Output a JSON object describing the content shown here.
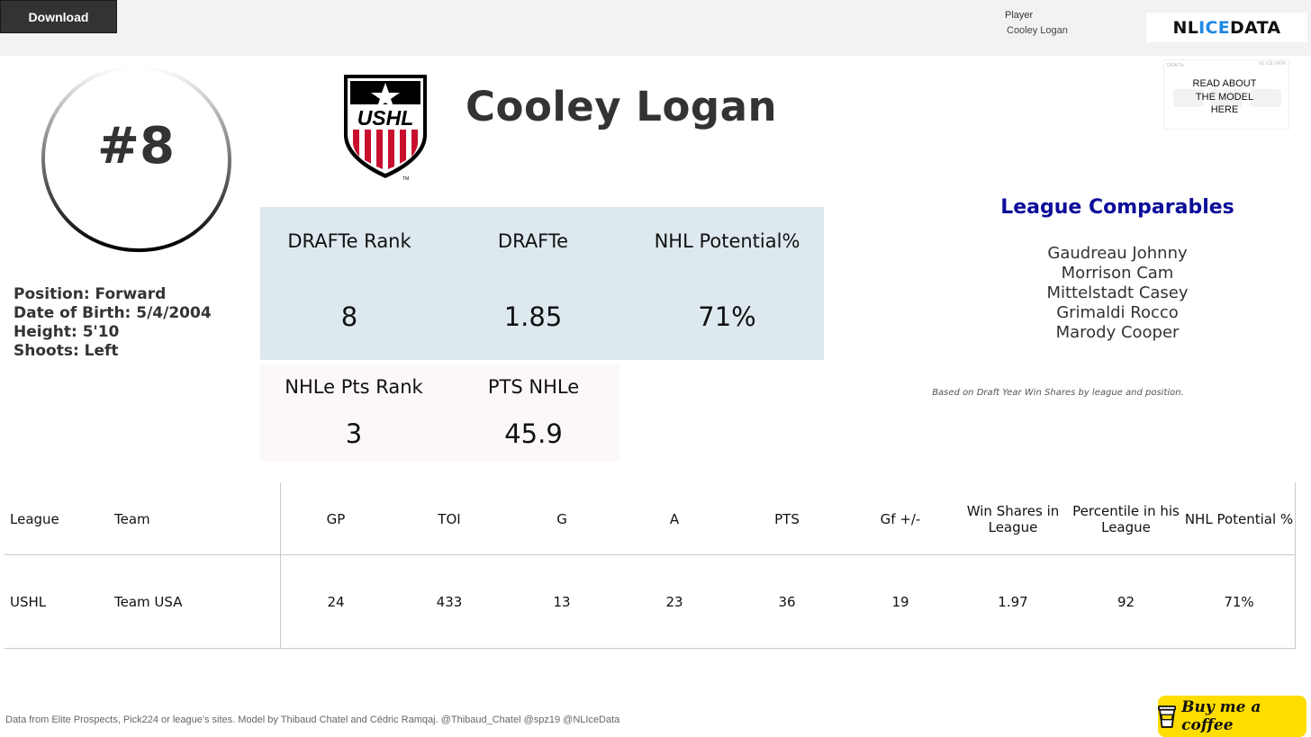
{
  "toolbar": {
    "download_label": "Download"
  },
  "filter": {
    "label": "Player",
    "value": "Cooley Logan"
  },
  "brand": {
    "part1": "NL ",
    "part2": "ICE",
    "part3": " DATA",
    "accent_color": "#1e88e5"
  },
  "player": {
    "number": "#8",
    "name": "Cooley Logan",
    "info": [
      "Position: Forward",
      "Date of Birth: 5/4/2004",
      "Height: 5'10",
      "Shoots: Left"
    ],
    "league_logo_text": "USHL",
    "league_logo_tm": "TM"
  },
  "model_link": {
    "label": "READ ABOUT THE MODEL HERE",
    "thumb_text_left": "DRAFTe",
    "thumb_text_right": "NL ICE DATA"
  },
  "stats_primary": [
    {
      "label": "DRAFTe Rank",
      "value": "8"
    },
    {
      "label": "DRAFTe",
      "value": "1.85"
    },
    {
      "label": "NHL Potential%",
      "value": "71%"
    }
  ],
  "stats_secondary": [
    {
      "label": "NHLe Pts Rank",
      "value": "3"
    },
    {
      "label": "PTS NHLe",
      "value": "45.9"
    }
  ],
  "comparables": {
    "title": "League Comparables",
    "players": [
      "Gaudreau Johnny",
      "Morrison Cam",
      "Mittelstadt Casey",
      "Grimaldi Rocco",
      "Marody Cooper"
    ],
    "note": "Based on Draft Year Win Shares by league and position."
  },
  "table": {
    "headers": [
      "League",
      "Team",
      "GP",
      "TOI",
      "G",
      "A",
      "PTS",
      "Gf +/-",
      "Win Shares in League",
      "Percentile in his League",
      "NHL Potential %"
    ],
    "rows": [
      [
        "USHL",
        "Team USA",
        "24",
        "433",
        "13",
        "23",
        "36",
        "19",
        "1.97",
        "92",
        "71%"
      ]
    ]
  },
  "footer": {
    "credits": "Data from Elite Prospects, Pick224 or league's sites. Model by Thibaud Chatel and Cédric Ramqaj. @Thibaud_Chatel @spz19 @NLIceData"
  },
  "coffee": {
    "label": "Buy me a coffee"
  },
  "colors": {
    "stat_blue": "#dde9ee",
    "stat_pink": "#fbf7fa",
    "comparables_title": "#0d0d9a",
    "coffee_yellow": "#ffdd00",
    "ushl_red": "#c8102e"
  }
}
